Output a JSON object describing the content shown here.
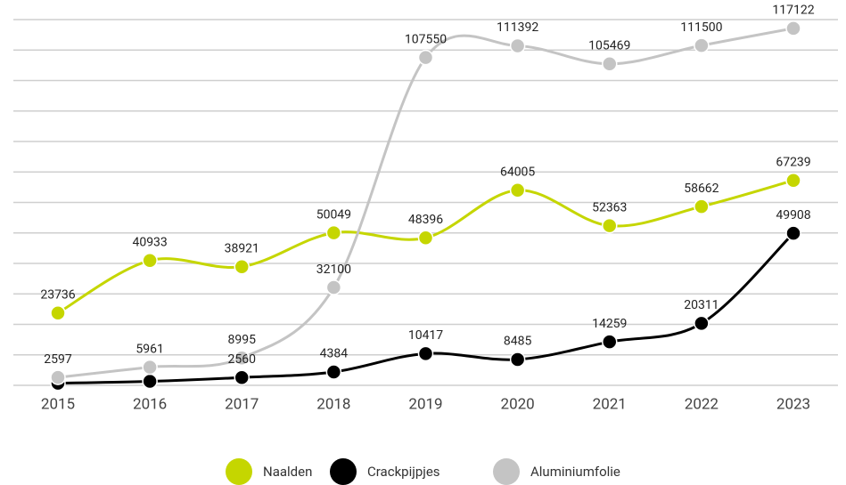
{
  "chart_data": {
    "type": "line",
    "categories": [
      "2015",
      "2016",
      "2017",
      "2018",
      "2019",
      "2020",
      "2021",
      "2022",
      "2023"
    ],
    "series": [
      {
        "name": "Naalden",
        "color": "#c5d600",
        "values": [
          23736,
          40933,
          38921,
          50049,
          48396,
          64005,
          52363,
          58662,
          67239
        ]
      },
      {
        "name": "Crackpijpjes",
        "color": "#000000",
        "values": [
          700,
          1300,
          2560,
          4384,
          10417,
          8485,
          14259,
          20311,
          49908
        ],
        "value_labels": [
          null,
          null,
          "2560",
          "4384",
          "10417",
          "8485",
          "14259",
          "20311",
          "49908"
        ]
      },
      {
        "name": "Aluminiumfolie",
        "color": "#c4c4c4",
        "values": [
          2597,
          5961,
          8995,
          32100,
          107550,
          111392,
          105469,
          111500,
          117122
        ]
      }
    ],
    "ylim": [
      0,
      120000
    ],
    "yticks": [
      0,
      10000,
      20000,
      30000,
      40000,
      50000,
      60000,
      70000,
      80000,
      90000,
      100000,
      110000,
      120000
    ],
    "grid": true
  }
}
